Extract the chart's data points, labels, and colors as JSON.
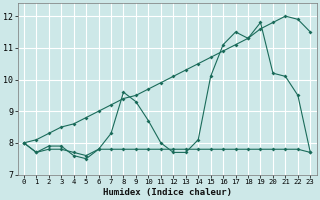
{
  "x": [
    0,
    1,
    2,
    3,
    4,
    5,
    6,
    7,
    8,
    9,
    10,
    11,
    12,
    13,
    14,
    15,
    16,
    17,
    18,
    19,
    20,
    21,
    22,
    23
  ],
  "series1": [
    8.0,
    7.7,
    7.9,
    7.9,
    7.6,
    7.5,
    7.8,
    8.3,
    9.6,
    9.3,
    8.7,
    8.0,
    7.7,
    7.7,
    8.1,
    10.1,
    11.1,
    11.5,
    11.3,
    11.8,
    10.2,
    10.1,
    9.5,
    7.7
  ],
  "series2": [
    8.0,
    7.7,
    7.8,
    7.8,
    7.7,
    7.6,
    7.8,
    7.8,
    7.8,
    7.8,
    7.8,
    7.8,
    7.8,
    7.8,
    7.8,
    7.8,
    7.8,
    7.8,
    7.8,
    7.8,
    7.8,
    7.8,
    7.8,
    7.7
  ],
  "series3": [
    8.0,
    8.1,
    8.3,
    8.5,
    8.6,
    8.8,
    9.0,
    9.2,
    9.4,
    9.5,
    9.7,
    9.9,
    10.1,
    10.3,
    10.5,
    10.7,
    10.9,
    11.1,
    11.3,
    11.6,
    11.8,
    12.0,
    11.9,
    11.5
  ],
  "bg_color": "#cde8e8",
  "line_color": "#1a6b5a",
  "grid_color": "#b0d0d0",
  "xlabel": "Humidex (Indice chaleur)",
  "ylim": [
    7.0,
    12.4
  ],
  "xlim": [
    -0.5,
    23.5
  ],
  "yticks": [
    7,
    8,
    9,
    10,
    11,
    12
  ],
  "xticks": [
    0,
    1,
    2,
    3,
    4,
    5,
    6,
    7,
    8,
    9,
    10,
    11,
    12,
    13,
    14,
    15,
    16,
    17,
    18,
    19,
    20,
    21,
    22,
    23
  ]
}
